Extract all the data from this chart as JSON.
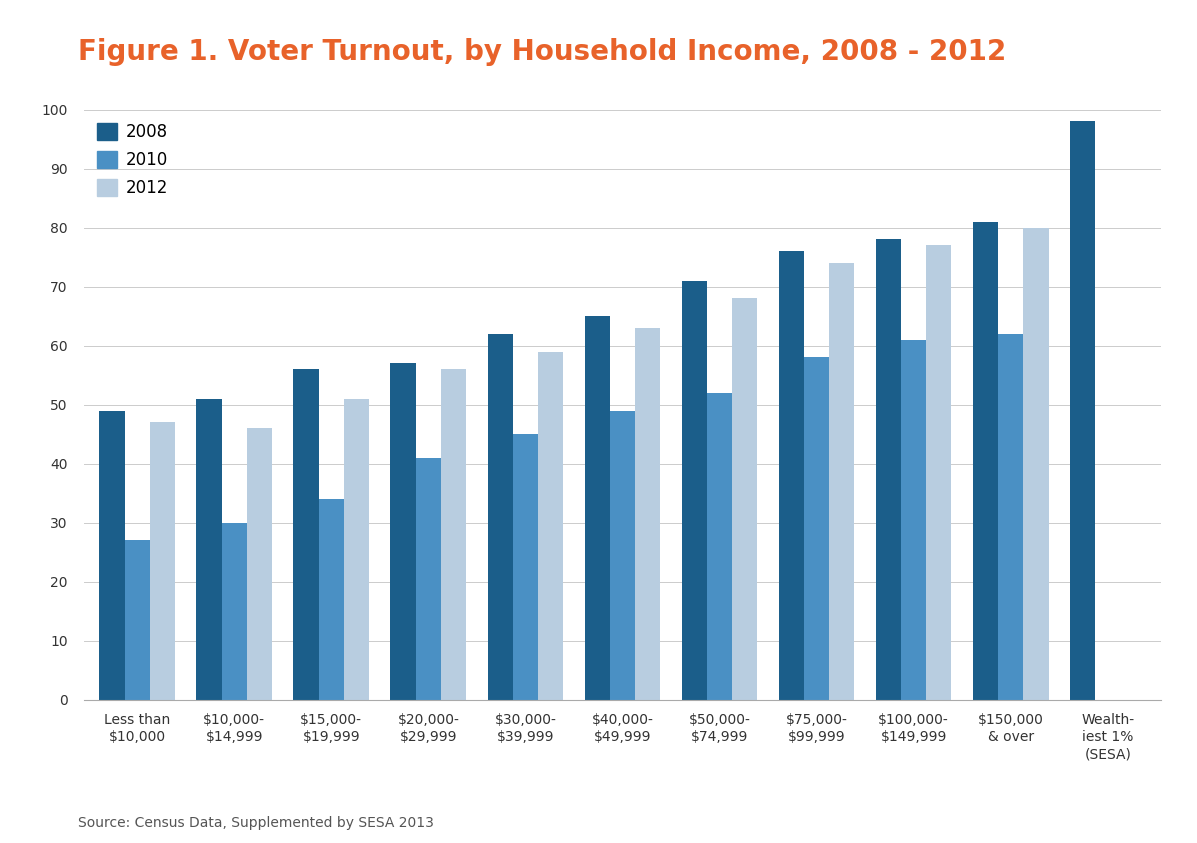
{
  "title": "Figure 1. Voter Turnout, by Household Income, 2008 - 2012",
  "categories": [
    "Less than\n$10,000",
    "$10,000-\n$14,999",
    "$15,000-\n$19,999",
    "$20,000-\n$29,999",
    "$30,000-\n$39,999",
    "$40,000-\n$49,999",
    "$50,000-\n$74,999",
    "$75,000-\n$99,999",
    "$100,000-\n$149,999",
    "$150,000\n& over",
    "Wealth-\niest 1%\n(SESA)"
  ],
  "series": {
    "2008": [
      49,
      51,
      56,
      57,
      62,
      65,
      71,
      76,
      78,
      81,
      98
    ],
    "2010": [
      27,
      30,
      34,
      41,
      45,
      49,
      52,
      58,
      61,
      62,
      null
    ],
    "2012": [
      47,
      46,
      51,
      56,
      59,
      63,
      68,
      74,
      77,
      80,
      null
    ]
  },
  "colors": {
    "2008": "#1b5e8a",
    "2010": "#4a90c4",
    "2012": "#b8cde0"
  },
  "ylim": [
    0,
    100
  ],
  "yticks": [
    0,
    10,
    20,
    30,
    40,
    50,
    60,
    70,
    80,
    90,
    100
  ],
  "source_text": "Source: Census Data, Supplemented by SESA 2013",
  "title_color": "#e8622a",
  "background_color": "#ffffff",
  "grid_color": "#cccccc",
  "bar_width": 0.26,
  "title_fontsize": 20,
  "tick_fontsize": 10,
  "legend_fontsize": 12,
  "source_fontsize": 10
}
